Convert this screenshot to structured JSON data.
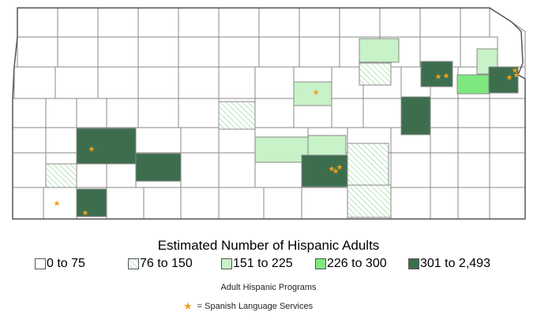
{
  "legend": {
    "title": "Estimated Number of Hispanic Adults",
    "categories": [
      {
        "label": "0 to 75",
        "fill": "#ffffff",
        "pattern": "none"
      },
      {
        "label": "76 to 150",
        "fill": "#ffffff",
        "pattern": "hatch"
      },
      {
        "label": "151 to 225",
        "fill": "#c8f2c8",
        "pattern": "none"
      },
      {
        "label": "226 to 300",
        "fill": "#7ee87e",
        "pattern": "none"
      },
      {
        "label": "301 to 2,493",
        "fill": "#3c6e4e",
        "pattern": "none"
      }
    ],
    "programs_title": "Adult Hispanic Programs",
    "star_label": "= Spanish Language Services",
    "star_icon": "star-icon"
  },
  "colors": {
    "county_border": "#888888",
    "hatch": "#8dd08d",
    "star": "#f0a020"
  }
}
